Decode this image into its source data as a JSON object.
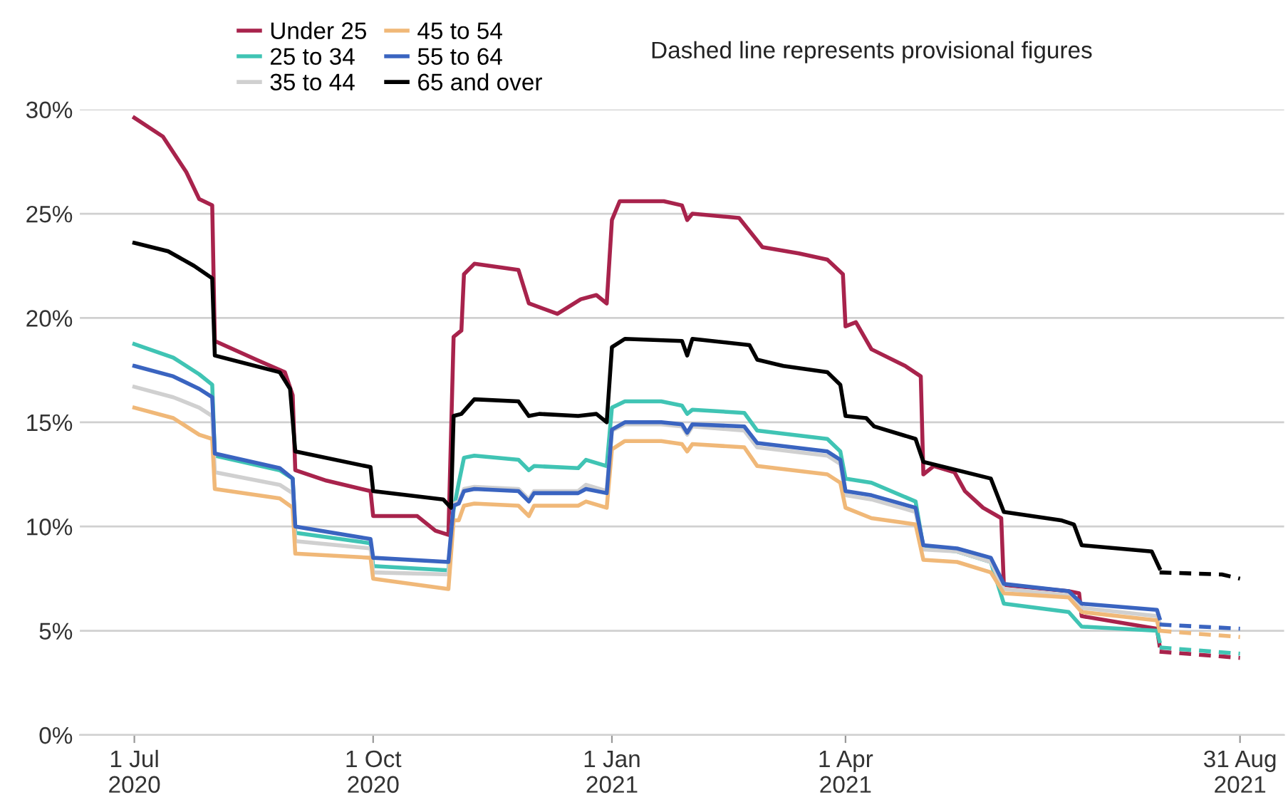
{
  "chart_data": {
    "type": "line",
    "annotations": [
      "Dashed line represents provisional figures"
    ],
    "xlim": [
      "2020-06-10",
      "2021-09-17"
    ],
    "xticks": [
      {
        "value": "2020-07-01",
        "label": "1 Jul\n2020"
      },
      {
        "value": "2020-10-01",
        "label": "1 Oct\n2020"
      },
      {
        "value": "2021-01-01",
        "label": "1 Jan\n2021"
      },
      {
        "value": "2021-04-01",
        "label": "1 Apr\n2021"
      },
      {
        "value": "2021-08-31",
        "label": "31 Aug\n2021"
      }
    ],
    "ylim": [
      0,
      30
    ],
    "yticks": [
      {
        "value": 0,
        "label": "0%"
      },
      {
        "value": 5,
        "label": "5%"
      },
      {
        "value": 10,
        "label": "10%"
      },
      {
        "value": 15,
        "label": "15%"
      },
      {
        "value": 20,
        "label": "20%"
      },
      {
        "value": 25,
        "label": "25%"
      },
      {
        "value": 30,
        "label": "30%"
      }
    ],
    "grid": "y",
    "legend": "top left",
    "line_style": "solid",
    "series": [
      {
        "name": "Under 25",
        "color": "#a8234c",
        "x": [
          "2020-07-01",
          "2020-07-12",
          "2020-07-21",
          "2020-07-26",
          "2020-07-31",
          "2020-08-01",
          "2020-08-17",
          "2020-08-28",
          "2020-08-31",
          "2020-09-01",
          "2020-09-13",
          "2020-09-30",
          "2020-10-01",
          "2020-10-18",
          "2020-10-25",
          "2020-10-30",
          "2020-11-01",
          "2020-11-04",
          "2020-11-05",
          "2020-11-09",
          "2020-11-26",
          "2020-11-30",
          "2020-12-11",
          "2020-12-20",
          "2020-12-26",
          "2020-12-30",
          "2021-01-01",
          "2021-01-04",
          "2021-01-21",
          "2021-01-28",
          "2021-01-30",
          "2021-02-01",
          "2021-02-19",
          "2021-02-28",
          "2021-03-14",
          "2021-03-25",
          "2021-03-31",
          "2021-04-01",
          "2021-04-05",
          "2021-04-11",
          "2021-04-24",
          "2021-04-30",
          "2021-05-01",
          "2021-05-05",
          "2021-05-13",
          "2021-05-17",
          "2021-05-24",
          "2021-05-31",
          "2021-06-01",
          "2021-06-26",
          "2021-06-30",
          "2021-07-01",
          "2021-07-30",
          "2021-07-31"
        ],
        "values": [
          29.6,
          28.7,
          27.0,
          25.7,
          25.4,
          18.9,
          18.0,
          17.4,
          16.3,
          12.7,
          12.2,
          11.7,
          10.5,
          10.5,
          9.8,
          9.6,
          19.1,
          19.4,
          22.1,
          22.6,
          22.3,
          20.7,
          20.2,
          20.9,
          21.1,
          20.7,
          24.7,
          25.6,
          25.6,
          25.4,
          24.7,
          25.0,
          24.8,
          23.4,
          23.1,
          22.8,
          22.1,
          19.6,
          19.8,
          18.5,
          17.7,
          17.2,
          12.5,
          12.9,
          12.6,
          11.7,
          10.9,
          10.4,
          7.2,
          6.9,
          6.8,
          5.7,
          5.1,
          4.3
        ]
      },
      {
        "name": "25 to 34",
        "color": "#40c4b4",
        "x": [
          "2020-07-01",
          "2020-07-16",
          "2020-07-26",
          "2020-07-31",
          "2020-08-01",
          "2020-08-26",
          "2020-08-31",
          "2020-09-01",
          "2020-09-30",
          "2020-10-01",
          "2020-10-30",
          "2020-11-01",
          "2020-11-03",
          "2020-11-05",
          "2020-11-09",
          "2020-11-26",
          "2020-11-30",
          "2020-12-02",
          "2020-12-19",
          "2020-12-22",
          "2020-12-30",
          "2021-01-01",
          "2021-01-06",
          "2021-01-20",
          "2021-01-28",
          "2021-01-30",
          "2021-02-01",
          "2021-02-21",
          "2021-02-26",
          "2021-03-25",
          "2021-03-30",
          "2021-04-01",
          "2021-04-11",
          "2021-04-28",
          "2021-05-01",
          "2021-05-14",
          "2021-05-27",
          "2021-06-01",
          "2021-06-26",
          "2021-07-01",
          "2021-07-30",
          "2021-07-31"
        ],
        "values": [
          18.75,
          18.1,
          17.3,
          16.8,
          13.4,
          12.7,
          12.3,
          9.7,
          9.2,
          8.1,
          7.9,
          10.8,
          12.1,
          13.3,
          13.4,
          13.2,
          12.7,
          12.9,
          12.8,
          13.2,
          12.9,
          15.7,
          16.0,
          16.0,
          15.8,
          15.4,
          15.6,
          15.45,
          14.6,
          14.2,
          13.6,
          12.3,
          12.1,
          11.2,
          9.0,
          8.8,
          8.3,
          6.3,
          5.9,
          5.2,
          5.0,
          4.5
        ]
      },
      {
        "name": "35 to 44",
        "color": "#d0d0d0",
        "x": [
          "2020-07-01",
          "2020-07-16",
          "2020-07-26",
          "2020-07-31",
          "2020-08-01",
          "2020-08-26",
          "2020-08-31",
          "2020-09-01",
          "2020-09-30",
          "2020-10-01",
          "2020-10-30",
          "2020-11-01",
          "2020-11-03",
          "2020-11-05",
          "2020-11-09",
          "2020-11-26",
          "2020-11-30",
          "2020-12-02",
          "2020-12-19",
          "2020-12-22",
          "2020-12-30",
          "2021-01-01",
          "2021-01-06",
          "2021-01-20",
          "2021-01-28",
          "2021-01-30",
          "2021-02-01",
          "2021-02-21",
          "2021-02-26",
          "2021-03-25",
          "2021-03-30",
          "2021-04-01",
          "2021-04-11",
          "2021-04-28",
          "2021-05-01",
          "2021-05-14",
          "2021-05-27",
          "2021-06-01",
          "2021-06-26",
          "2021-07-01",
          "2021-07-30",
          "2021-07-31"
        ],
        "values": [
          16.7,
          16.2,
          15.7,
          15.3,
          12.6,
          12.0,
          11.6,
          9.3,
          8.95,
          7.8,
          7.7,
          11.1,
          11.2,
          11.8,
          11.9,
          11.8,
          11.3,
          11.7,
          11.7,
          12.0,
          11.7,
          14.6,
          14.9,
          14.9,
          14.8,
          14.4,
          14.8,
          14.6,
          13.8,
          13.4,
          13.0,
          11.5,
          11.3,
          10.7,
          8.9,
          8.8,
          8.3,
          7.0,
          6.7,
          6.1,
          5.7,
          5.4
        ]
      },
      {
        "name": "45 to 54",
        "color": "#f0b878",
        "x": [
          "2020-07-01",
          "2020-07-16",
          "2020-07-26",
          "2020-07-31",
          "2020-08-01",
          "2020-08-26",
          "2020-08-31",
          "2020-09-01",
          "2020-09-30",
          "2020-10-01",
          "2020-10-30",
          "2020-11-01",
          "2020-11-03",
          "2020-11-05",
          "2020-11-09",
          "2020-11-26",
          "2020-11-30",
          "2020-12-02",
          "2020-12-19",
          "2020-12-22",
          "2020-12-30",
          "2021-01-01",
          "2021-01-06",
          "2021-01-20",
          "2021-01-28",
          "2021-01-30",
          "2021-02-01",
          "2021-02-21",
          "2021-02-26",
          "2021-03-25",
          "2021-03-30",
          "2021-04-01",
          "2021-04-11",
          "2021-04-28",
          "2021-05-01",
          "2021-05-14",
          "2021-05-27",
          "2021-06-01",
          "2021-06-26",
          "2021-07-01",
          "2021-07-30",
          "2021-07-31"
        ],
        "values": [
          15.7,
          15.2,
          14.4,
          14.2,
          11.8,
          11.35,
          10.9,
          8.7,
          8.5,
          7.5,
          7.0,
          10.3,
          10.3,
          11.0,
          11.1,
          11.0,
          10.5,
          11.0,
          11.0,
          11.2,
          10.9,
          13.7,
          14.1,
          14.1,
          13.95,
          13.6,
          13.95,
          13.8,
          12.9,
          12.5,
          12.1,
          10.9,
          10.4,
          10.1,
          8.4,
          8.3,
          7.8,
          6.8,
          6.6,
          5.9,
          5.5,
          5.0
        ]
      },
      {
        "name": "55 to 64",
        "color": "#3a64c0",
        "x": [
          "2020-07-01",
          "2020-07-16",
          "2020-07-26",
          "2020-07-31",
          "2020-08-01",
          "2020-08-26",
          "2020-08-31",
          "2020-09-01",
          "2020-09-30",
          "2020-10-01",
          "2020-10-30",
          "2020-11-01",
          "2020-11-03",
          "2020-11-05",
          "2020-11-09",
          "2020-11-26",
          "2020-11-30",
          "2020-12-02",
          "2020-12-19",
          "2020-12-22",
          "2020-12-30",
          "2021-01-01",
          "2021-01-06",
          "2021-01-20",
          "2021-01-28",
          "2021-01-30",
          "2021-02-01",
          "2021-02-21",
          "2021-02-26",
          "2021-03-25",
          "2021-03-30",
          "2021-04-01",
          "2021-04-11",
          "2021-04-28",
          "2021-05-01",
          "2021-05-14",
          "2021-05-27",
          "2021-06-01",
          "2021-06-26",
          "2021-07-01",
          "2021-07-30",
          "2021-07-31"
        ],
        "values": [
          17.7,
          17.2,
          16.6,
          16.2,
          13.5,
          12.8,
          12.3,
          10.0,
          9.4,
          8.5,
          8.3,
          11.0,
          11.1,
          11.7,
          11.8,
          11.7,
          11.2,
          11.6,
          11.6,
          11.8,
          11.6,
          14.65,
          15.0,
          15.0,
          14.9,
          14.5,
          14.9,
          14.8,
          14.0,
          13.6,
          13.2,
          11.7,
          11.5,
          10.9,
          9.1,
          8.95,
          8.5,
          7.25,
          6.9,
          6.3,
          6.0,
          5.6
        ]
      },
      {
        "name": "65 and over",
        "color": "#000000",
        "x": [
          "2020-07-01",
          "2020-07-14",
          "2020-07-24",
          "2020-07-31",
          "2020-08-01",
          "2020-08-26",
          "2020-08-30",
          "2020-09-01",
          "2020-09-28",
          "2020-09-30",
          "2020-10-01",
          "2020-10-28",
          "2020-10-31",
          "2020-11-01",
          "2020-11-04",
          "2020-11-09",
          "2020-11-26",
          "2020-11-30",
          "2020-12-04",
          "2020-12-19",
          "2020-12-26",
          "2020-12-30",
          "2021-01-01",
          "2021-01-06",
          "2021-01-28",
          "2021-01-30",
          "2021-02-01",
          "2021-02-23",
          "2021-02-26",
          "2021-03-08",
          "2021-03-25",
          "2021-03-30",
          "2021-04-01",
          "2021-04-09",
          "2021-04-12",
          "2021-04-28",
          "2021-05-01",
          "2021-05-14",
          "2021-05-27",
          "2021-06-01",
          "2021-06-23",
          "2021-06-28",
          "2021-07-01",
          "2021-07-28",
          "2021-07-31"
        ],
        "values": [
          23.6,
          23.2,
          22.5,
          21.9,
          18.2,
          17.4,
          16.6,
          13.6,
          12.9,
          12.85,
          11.7,
          11.3,
          10.9,
          15.3,
          15.4,
          16.1,
          16.0,
          15.3,
          15.4,
          15.3,
          15.4,
          15.0,
          18.6,
          19.0,
          18.9,
          18.2,
          19.0,
          18.7,
          18.0,
          17.7,
          17.4,
          16.8,
          15.3,
          15.2,
          14.8,
          14.2,
          13.1,
          12.7,
          12.3,
          10.7,
          10.3,
          10.1,
          9.1,
          8.8,
          8.0
        ]
      },
      {
        "color": "#a8234c",
        "line_style": "dashed",
        "x": [
          "2021-07-31",
          "2021-08-31"
        ],
        "values": [
          4.0,
          3.7
        ]
      },
      {
        "color": "#40c4b4",
        "line_style": "dashed",
        "x": [
          "2021-07-31",
          "2021-08-31"
        ],
        "values": [
          4.2,
          3.9
        ]
      },
      {
        "color": "#f0b878",
        "line_style": "dashed",
        "x": [
          "2021-07-31",
          "2021-08-31"
        ],
        "values": [
          5.0,
          4.7
        ]
      },
      {
        "color": "#3a64c0",
        "line_style": "dashed",
        "x": [
          "2021-07-31",
          "2021-08-31"
        ],
        "values": [
          5.3,
          5.1
        ]
      },
      {
        "color": "#000000",
        "line_style": "dashed",
        "x": [
          "2021-07-31",
          "2021-08-24",
          "2021-08-31"
        ],
        "values": [
          7.8,
          7.7,
          7.5
        ]
      }
    ]
  }
}
